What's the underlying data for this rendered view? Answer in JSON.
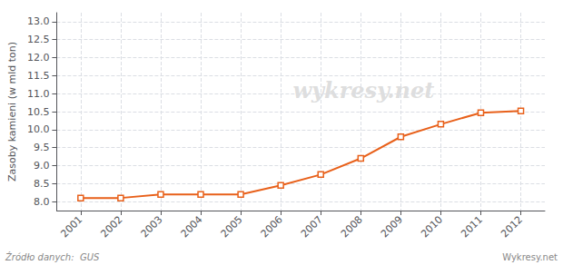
{
  "chart_data": {
    "type": "line",
    "ylabel": "Zasoby kamieni (w mld ton)",
    "annotations": [
      "wykresy.net",
      "Źródło danych:  GUS",
      "Wykresy.net"
    ],
    "x": [
      2001,
      2002,
      2003,
      2004,
      2005,
      2006,
      2007,
      2008,
      2009,
      2010,
      2011,
      2012
    ],
    "values": [
      8.1,
      8.1,
      8.2,
      8.2,
      8.2,
      8.45,
      8.75,
      9.2,
      9.8,
      10.15,
      10.47,
      10.52
    ],
    "color": "#e8601a",
    "marker": "square",
    "xlim": [
      2000.4,
      2012.6
    ],
    "xticks": [
      2001,
      2002,
      2003,
      2004,
      2005,
      2006,
      2007,
      2008,
      2009,
      2010,
      2011,
      2012
    ],
    "ylim": [
      7.75,
      13.25
    ],
    "yticks": [
      {
        "value": 8,
        "label": "8.0"
      },
      8.5,
      {
        "value": 9,
        "label": "9.0"
      },
      9.5,
      {
        "value": 10,
        "label": "10.0"
      },
      10.5,
      {
        "value": 11,
        "label": "11.0"
      },
      11.5,
      {
        "value": 12,
        "label": "12.0"
      },
      12.5,
      {
        "value": 13,
        "label": "13.0"
      }
    ],
    "grid": true
  }
}
